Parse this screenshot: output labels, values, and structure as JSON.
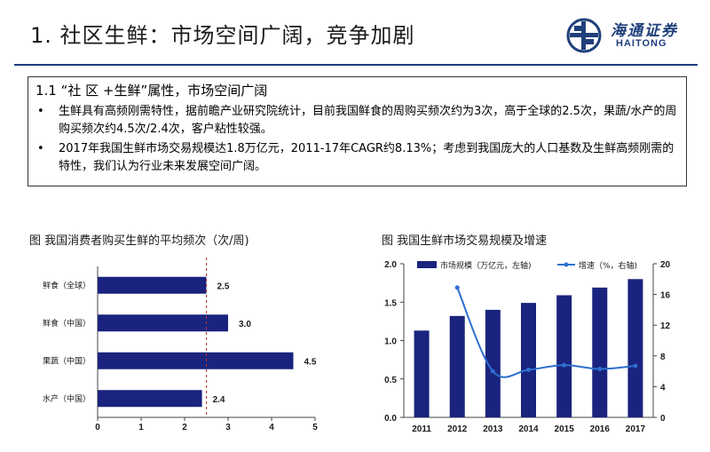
{
  "header": {
    "title": "1. 社区生鲜：市场空间广阔，竞争加剧",
    "logo_cn": "海通证券",
    "logo_en": "HAITONG"
  },
  "summary": {
    "heading": "1.1 “社 区 +生鲜”属性，市场空间广阔",
    "bullets": [
      "生鲜具有高频刚需特性，据前瞻产业研究院统计，目前我国鲜食的周购买频次约为3次，高于全球的2.5次，果蔬/水产的周购买频次约4.5次/2.4次，客户粘性较强。",
      "2017年我国生鲜市场交易规模达1.8万亿元，2011-17年CAGR约8.13%；考虑到我国庞大的人口基数及生鲜高频刚需的特性，我们认为行业未来发展空间广阔。"
    ]
  },
  "chart_data": [
    {
      "type": "bar",
      "orientation": "horizontal",
      "title": "图 我国消费者购买生鲜的平均频次（次/周)",
      "categories": [
        "鲜食（全球）",
        "鲜食（中国）",
        "果蔬（中国）",
        "水产（中国）"
      ],
      "values": [
        2.5,
        3.0,
        4.5,
        2.4
      ],
      "value_labels": [
        "2.5",
        "3.0",
        "4.5",
        "2.4"
      ],
      "xlim": [
        0,
        5
      ],
      "xticks": [
        "0",
        "1",
        "2",
        "3",
        "4",
        "5"
      ],
      "reference_line": 2.5,
      "bar_color": "#1a237e"
    },
    {
      "type": "bar+line",
      "title": "图 我国生鲜市场交易规模及增速",
      "categories": [
        "2011",
        "2012",
        "2013",
        "2014",
        "2015",
        "2016",
        "2017"
      ],
      "series": [
        {
          "name": "市场规模（万亿元，左轴)",
          "type": "bar",
          "axis": "left",
          "values": [
            1.13,
            1.32,
            1.4,
            1.49,
            1.59,
            1.69,
            1.8
          ],
          "color": "#1a237e"
        },
        {
          "name": "增速（%，右轴)",
          "type": "line",
          "axis": "right",
          "values": [
            null,
            16.9,
            6.0,
            6.2,
            6.8,
            6.3,
            6.7
          ],
          "color": "#2d6fcf"
        }
      ],
      "ylim_left": [
        0,
        2.0
      ],
      "yticks_left": [
        "0.0",
        "0.5",
        "1.0",
        "1.5",
        "2.0"
      ],
      "ylim_right": [
        0,
        20
      ],
      "yticks_right": [
        "0",
        "4",
        "8",
        "12",
        "16",
        "20"
      ]
    }
  ]
}
